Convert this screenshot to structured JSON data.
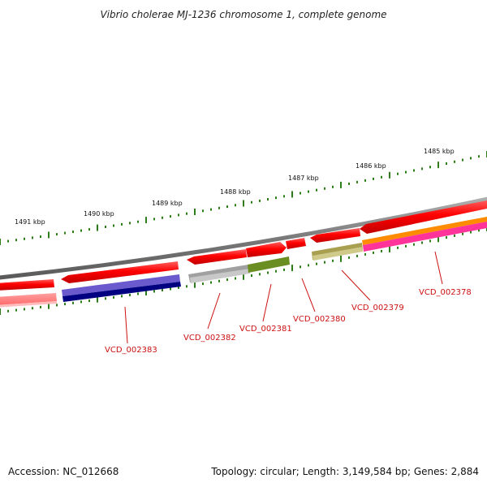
{
  "title": "Vibrio cholerae MJ-1236 chromosome 1, complete genome",
  "footer": {
    "accession": "Accession: NC_012668",
    "summary": "Topology: circular; Length: 3,149,584 bp; Genes: 2,884"
  },
  "scale_labels": [
    "1485 kbp",
    "1486 kbp",
    "1487 kbp",
    "1488 kbp",
    "1489 kbp",
    "1490 kbp",
    "1491 kbp"
  ],
  "gene_labels": [
    "VCD_002378",
    "VCD_002379",
    "VCD_002380",
    "VCD_002381",
    "VCD_002382",
    "VCD_002383"
  ],
  "colors": {
    "backbone": "#808080",
    "forward_gene": "#ff1010",
    "reverse_gene": "#ff7070",
    "label": "#cc1111",
    "tick": "#2e7d1a",
    "vcd_002378": "#ff8c00",
    "vcd_002378_inner": "#ff3399",
    "vcd_002379": "#a8a050",
    "vcd_002381": "#6b8e23",
    "vcd_002382": "#a0a0a0",
    "vcd_002383": "#6a5acd",
    "vcd_002383_inner": "#000080"
  }
}
